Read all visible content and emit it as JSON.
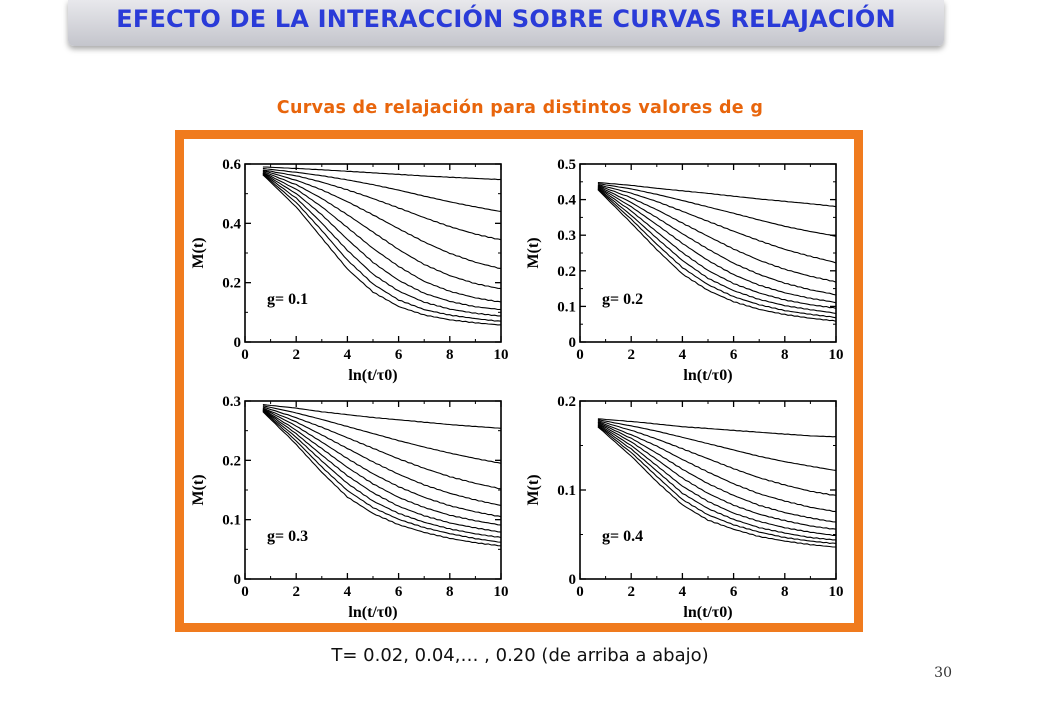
{
  "header": {
    "title": "EFECTO DE LA INTERACCIÓN SOBRE CURVAS RELAJACIÓN"
  },
  "subtitle": "Curvas de relajación para distintos valores de g",
  "caption": "T= 0.02, 0.04,… , 0.20 (de arriba a abajo)",
  "page_number": "30",
  "colors": {
    "title_text": "#2a3bd8",
    "title_bar": "#c9cad1",
    "subtitle": "#e8650c",
    "frame": "#f07b1e",
    "curves": "#000000"
  },
  "chart_data": [
    {
      "type": "line",
      "panel_label": "g= 0.1",
      "xlabel": "ln(t/τ0)",
      "ylabel": "M(t)",
      "xlim": [
        0,
        10
      ],
      "ylim": [
        0,
        0.6
      ],
      "xticks": [
        "0",
        "2",
        "4",
        "6",
        "8",
        "10"
      ],
      "yticks": [
        "0",
        "0.2",
        "0.4",
        "0.6"
      ],
      "x": [
        0.7,
        2,
        3,
        4,
        5,
        6,
        7,
        8,
        9,
        10
      ],
      "series": [
        {
          "values": [
            0.59,
            0.585,
            0.58,
            0.575,
            0.57,
            0.565,
            0.56,
            0.556,
            0.552,
            0.548
          ]
        },
        {
          "values": [
            0.585,
            0.572,
            0.56,
            0.546,
            0.53,
            0.512,
            0.492,
            0.473,
            0.456,
            0.44
          ]
        },
        {
          "values": [
            0.58,
            0.56,
            0.538,
            0.512,
            0.483,
            0.452,
            0.42,
            0.39,
            0.365,
            0.345
          ]
        },
        {
          "values": [
            0.578,
            0.545,
            0.512,
            0.472,
            0.428,
            0.382,
            0.338,
            0.3,
            0.27,
            0.248
          ]
        },
        {
          "values": [
            0.575,
            0.53,
            0.483,
            0.428,
            0.37,
            0.312,
            0.262,
            0.225,
            0.198,
            0.18
          ]
        },
        {
          "values": [
            0.572,
            0.515,
            0.455,
            0.385,
            0.315,
            0.255,
            0.205,
            0.172,
            0.15,
            0.135
          ]
        },
        {
          "values": [
            0.57,
            0.5,
            0.428,
            0.345,
            0.268,
            0.208,
            0.165,
            0.138,
            0.12,
            0.11
          ]
        },
        {
          "values": [
            0.568,
            0.485,
            0.4,
            0.308,
            0.228,
            0.172,
            0.135,
            0.112,
            0.098,
            0.088
          ]
        },
        {
          "values": [
            0.566,
            0.47,
            0.375,
            0.275,
            0.195,
            0.142,
            0.11,
            0.092,
            0.08,
            0.07
          ]
        },
        {
          "values": [
            0.564,
            0.455,
            0.35,
            0.245,
            0.168,
            0.12,
            0.092,
            0.076,
            0.066,
            0.058
          ]
        }
      ]
    },
    {
      "type": "line",
      "panel_label": "g= 0.2",
      "xlabel": "ln(t/τ0)",
      "ylabel": "M(t)",
      "xlim": [
        0,
        10
      ],
      "ylim": [
        0,
        0.5
      ],
      "xticks": [
        "0",
        "2",
        "4",
        "6",
        "8",
        "10"
      ],
      "yticks": [
        "0",
        "0.1",
        "0.2",
        "0.3",
        "0.4",
        "0.5"
      ],
      "x": [
        0.7,
        2,
        3,
        4,
        5,
        6,
        7,
        8,
        9,
        10
      ],
      "series": [
        {
          "values": [
            0.448,
            0.44,
            0.432,
            0.425,
            0.418,
            0.41,
            0.402,
            0.395,
            0.388,
            0.38
          ]
        },
        {
          "values": [
            0.445,
            0.43,
            0.415,
            0.398,
            0.38,
            0.362,
            0.343,
            0.325,
            0.31,
            0.297
          ]
        },
        {
          "values": [
            0.442,
            0.418,
            0.395,
            0.368,
            0.34,
            0.312,
            0.285,
            0.26,
            0.24,
            0.222
          ]
        },
        {
          "values": [
            0.44,
            0.405,
            0.372,
            0.335,
            0.298,
            0.262,
            0.23,
            0.204,
            0.184,
            0.168
          ]
        },
        {
          "values": [
            0.438,
            0.392,
            0.35,
            0.305,
            0.262,
            0.222,
            0.19,
            0.165,
            0.146,
            0.132
          ]
        },
        {
          "values": [
            0.436,
            0.38,
            0.33,
            0.278,
            0.23,
            0.19,
            0.16,
            0.138,
            0.122,
            0.11
          ]
        },
        {
          "values": [
            0.434,
            0.368,
            0.31,
            0.252,
            0.202,
            0.165,
            0.138,
            0.118,
            0.104,
            0.094
          ]
        },
        {
          "values": [
            0.432,
            0.356,
            0.292,
            0.23,
            0.18,
            0.145,
            0.12,
            0.102,
            0.09,
            0.08
          ]
        },
        {
          "values": [
            0.43,
            0.345,
            0.275,
            0.21,
            0.162,
            0.128,
            0.105,
            0.088,
            0.077,
            0.068
          ]
        },
        {
          "values": [
            0.428,
            0.334,
            0.26,
            0.192,
            0.146,
            0.114,
            0.092,
            0.077,
            0.066,
            0.058
          ]
        }
      ]
    },
    {
      "type": "line",
      "panel_label": "g= 0.3",
      "xlabel": "ln(t/τ0)",
      "ylabel": "M(t)",
      "xlim": [
        0,
        10
      ],
      "ylim": [
        0,
        0.3
      ],
      "xticks": [
        "0",
        "2",
        "4",
        "6",
        "8",
        "10"
      ],
      "yticks": [
        "0",
        "0.1",
        "0.2",
        "0.3"
      ],
      "x": [
        0.7,
        2,
        3,
        4,
        5,
        6,
        7,
        8,
        9,
        10
      ],
      "series": [
        {
          "values": [
            0.294,
            0.288,
            0.282,
            0.277,
            0.272,
            0.268,
            0.264,
            0.26,
            0.257,
            0.254
          ]
        },
        {
          "values": [
            0.292,
            0.28,
            0.269,
            0.257,
            0.245,
            0.233,
            0.222,
            0.212,
            0.203,
            0.195
          ]
        },
        {
          "values": [
            0.29,
            0.272,
            0.256,
            0.238,
            0.22,
            0.202,
            0.186,
            0.172,
            0.161,
            0.152
          ]
        },
        {
          "values": [
            0.288,
            0.265,
            0.243,
            0.22,
            0.197,
            0.176,
            0.158,
            0.144,
            0.133,
            0.124
          ]
        },
        {
          "values": [
            0.287,
            0.258,
            0.231,
            0.203,
            0.177,
            0.155,
            0.137,
            0.123,
            0.113,
            0.105
          ]
        },
        {
          "values": [
            0.286,
            0.251,
            0.22,
            0.188,
            0.16,
            0.137,
            0.12,
            0.107,
            0.098,
            0.091
          ]
        },
        {
          "values": [
            0.285,
            0.245,
            0.209,
            0.174,
            0.145,
            0.122,
            0.106,
            0.094,
            0.086,
            0.079
          ]
        },
        {
          "values": [
            0.284,
            0.239,
            0.199,
            0.161,
            0.131,
            0.11,
            0.095,
            0.084,
            0.076,
            0.07
          ]
        },
        {
          "values": [
            0.283,
            0.233,
            0.189,
            0.149,
            0.12,
            0.1,
            0.086,
            0.076,
            0.068,
            0.062
          ]
        },
        {
          "values": [
            0.282,
            0.227,
            0.18,
            0.138,
            0.11,
            0.091,
            0.078,
            0.068,
            0.061,
            0.056
          ]
        }
      ]
    },
    {
      "type": "line",
      "panel_label": "g= 0.4",
      "xlabel": "ln(t/τ0)",
      "ylabel": "M(t)",
      "xlim": [
        0,
        10
      ],
      "ylim": [
        0,
        0.2
      ],
      "xticks": [
        "0",
        "2",
        "4",
        "6",
        "8",
        "10"
      ],
      "yticks": [
        "0",
        "0.1",
        "0.2"
      ],
      "x": [
        0.7,
        2,
        3,
        4,
        5,
        6,
        7,
        8,
        9,
        10
      ],
      "series": [
        {
          "values": [
            0.18,
            0.177,
            0.174,
            0.171,
            0.169,
            0.167,
            0.165,
            0.163,
            0.161,
            0.16
          ]
        },
        {
          "values": [
            0.179,
            0.172,
            0.166,
            0.159,
            0.152,
            0.145,
            0.138,
            0.132,
            0.127,
            0.122
          ]
        },
        {
          "values": [
            0.178,
            0.167,
            0.157,
            0.146,
            0.135,
            0.124,
            0.114,
            0.106,
            0.099,
            0.094
          ]
        },
        {
          "values": [
            0.177,
            0.162,
            0.149,
            0.134,
            0.12,
            0.107,
            0.096,
            0.088,
            0.081,
            0.076
          ]
        },
        {
          "values": [
            0.176,
            0.158,
            0.141,
            0.123,
            0.107,
            0.094,
            0.083,
            0.075,
            0.069,
            0.064
          ]
        },
        {
          "values": [
            0.175,
            0.154,
            0.134,
            0.113,
            0.096,
            0.083,
            0.073,
            0.066,
            0.06,
            0.056
          ]
        },
        {
          "values": [
            0.174,
            0.15,
            0.127,
            0.104,
            0.087,
            0.074,
            0.065,
            0.058,
            0.053,
            0.049
          ]
        },
        {
          "values": [
            0.173,
            0.146,
            0.121,
            0.096,
            0.079,
            0.067,
            0.058,
            0.052,
            0.047,
            0.044
          ]
        },
        {
          "values": [
            0.172,
            0.142,
            0.115,
            0.089,
            0.072,
            0.061,
            0.053,
            0.047,
            0.043,
            0.04
          ]
        },
        {
          "values": [
            0.171,
            0.138,
            0.109,
            0.083,
            0.066,
            0.056,
            0.048,
            0.043,
            0.039,
            0.036
          ]
        }
      ]
    }
  ]
}
